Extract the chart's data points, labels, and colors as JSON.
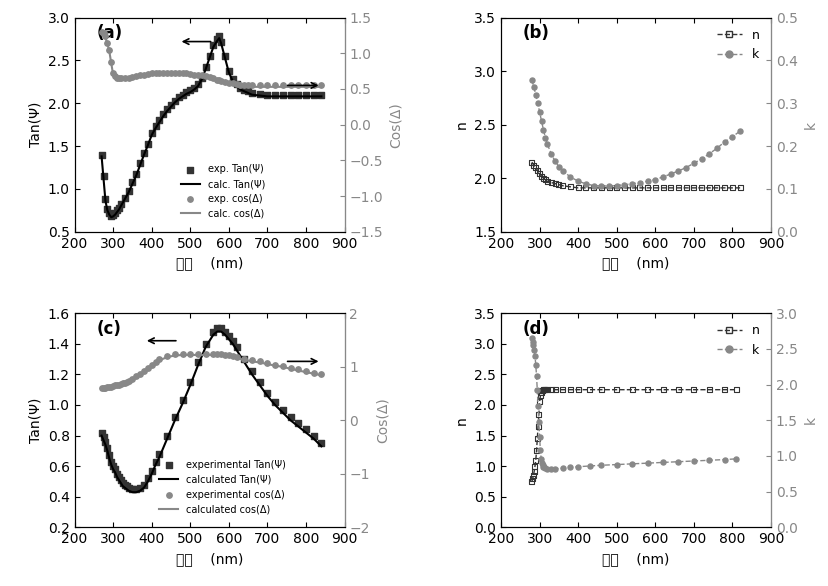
{
  "fig_width": 8.29,
  "fig_height": 5.86,
  "panel_a": {
    "label": "(a)",
    "xlabel": "波长    (nm)",
    "ylabel_left": "Tan(Ψ)",
    "ylabel_right": "Cos(Δ)",
    "xlim": [
      200,
      900
    ],
    "ylim_left": [
      0.5,
      3.0
    ],
    "ylim_right": [
      -1.5,
      1.5
    ],
    "yticks_left": [
      0.5,
      1.0,
      1.5,
      2.0,
      2.5,
      3.0
    ],
    "yticks_right": [
      -1.5,
      -1.0,
      -0.5,
      0.0,
      0.5,
      1.0,
      1.5
    ],
    "xticks": [
      200,
      300,
      400,
      500,
      600,
      700,
      800,
      900
    ],
    "legend": [
      "exp. Tan(Ψ)",
      "calc. Tan(Ψ)",
      "exp. cos(Δ)",
      "calc. cos(Δ)"
    ]
  },
  "panel_b": {
    "label": "(b)",
    "xlabel": "波长    (nm)",
    "ylabel_left": "n",
    "ylabel_right": "k",
    "xlim": [
      200,
      900
    ],
    "ylim_left": [
      1.5,
      3.5
    ],
    "ylim_right": [
      0.0,
      0.5
    ],
    "yticks_left": [
      1.5,
      2.0,
      2.5,
      3.0,
      3.5
    ],
    "yticks_right": [
      0.0,
      0.1,
      0.2,
      0.3,
      0.4,
      0.5
    ],
    "xticks": [
      200,
      300,
      400,
      500,
      600,
      700,
      800,
      900
    ],
    "legend": [
      "n",
      "k"
    ]
  },
  "panel_c": {
    "label": "(c)",
    "xlabel": "波长    (nm)",
    "ylabel_left": "Tan(Ψ)",
    "ylabel_right": "Cos(Δ)",
    "xlim": [
      200,
      900
    ],
    "ylim_left": [
      0.2,
      1.6
    ],
    "ylim_right": [
      -2.0,
      2.0
    ],
    "yticks_left": [
      0.2,
      0.4,
      0.6,
      0.8,
      1.0,
      1.2,
      1.4,
      1.6
    ],
    "yticks_right": [
      -2,
      -1,
      0,
      1,
      2
    ],
    "xticks": [
      200,
      300,
      400,
      500,
      600,
      700,
      800,
      900
    ],
    "legend": [
      "experimental Tan(Ψ)",
      "calculated Tan(Ψ)",
      "experimental cos(Δ)",
      "calculated cos(Δ)"
    ]
  },
  "panel_d": {
    "label": "(d)",
    "xlabel": "波长    (nm)",
    "ylabel_left": "n",
    "ylabel_right": "k",
    "xlim": [
      200,
      900
    ],
    "ylim_left": [
      0.0,
      3.5
    ],
    "ylim_right": [
      0.0,
      3.0
    ],
    "yticks_left": [
      0.0,
      0.5,
      1.0,
      1.5,
      2.0,
      2.5,
      3.0,
      3.5
    ],
    "yticks_right": [
      0.0,
      0.5,
      1.0,
      1.5,
      2.0,
      2.5,
      3.0
    ],
    "xticks": [
      200,
      300,
      400,
      500,
      600,
      700,
      800,
      900
    ],
    "legend": [
      "n",
      "k"
    ]
  }
}
